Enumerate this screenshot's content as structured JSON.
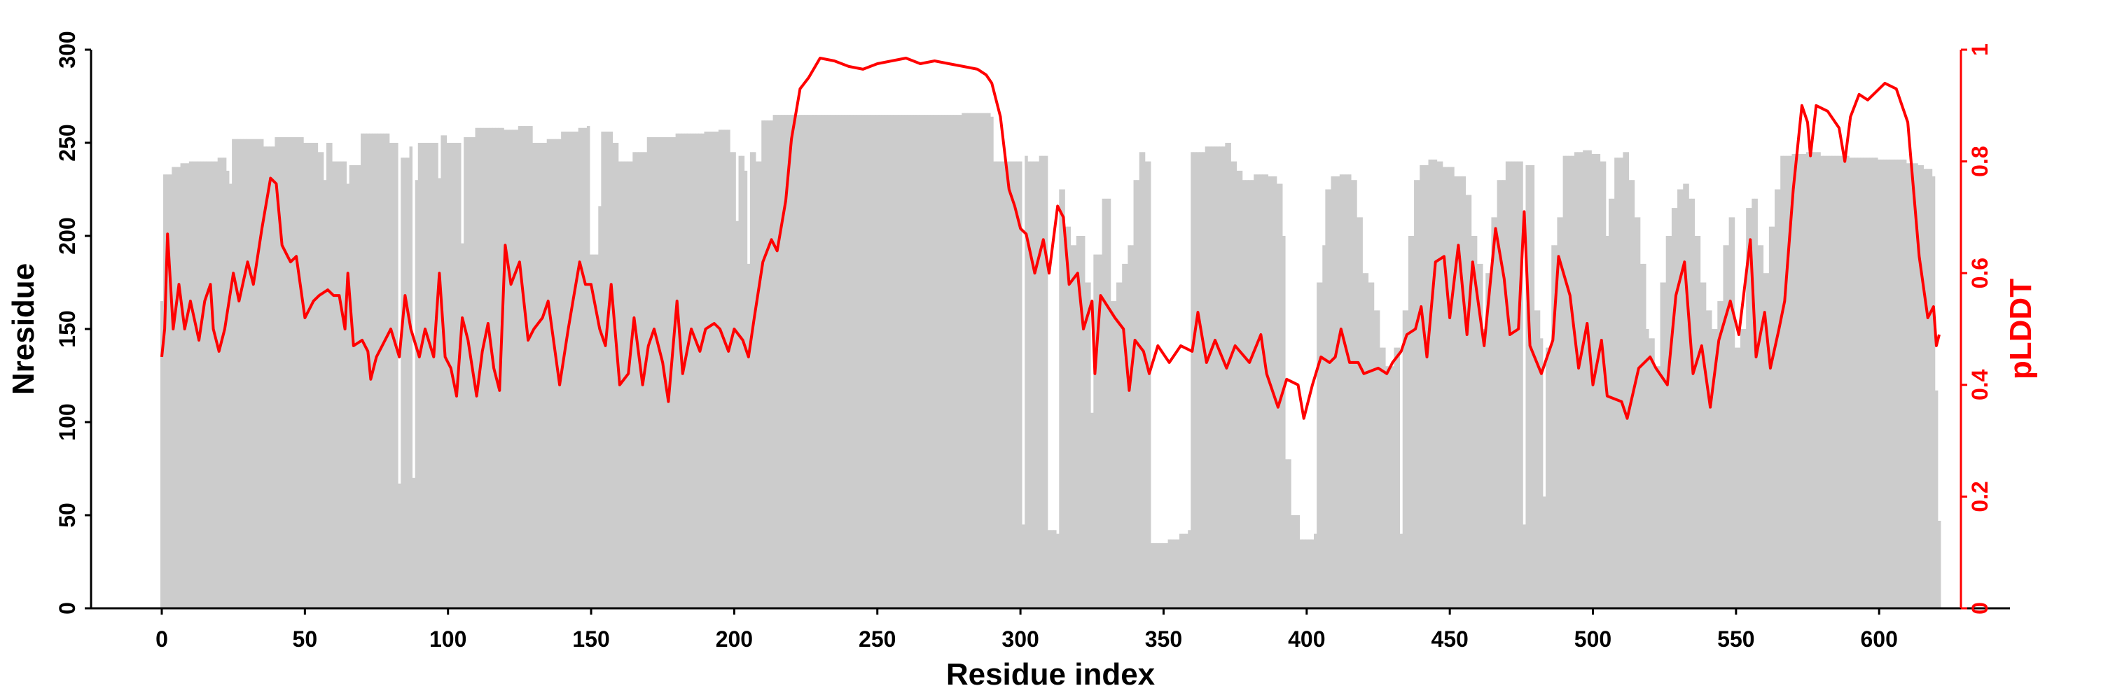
{
  "chart_data": {
    "type": "bar+line",
    "xlabel": "Residue index",
    "ylabel": "Nresidue",
    "y2label": "pLDDT",
    "xlim": [
      -25,
      640
    ],
    "ylim": [
      0,
      300
    ],
    "y2lim": [
      0,
      1
    ],
    "xticks": [
      "0",
      "50",
      "100",
      "150",
      "200",
      "250",
      "300",
      "350",
      "400",
      "450",
      "500",
      "550",
      "600"
    ],
    "yticks": [
      "0",
      "50",
      "100",
      "150",
      "200",
      "250",
      "300"
    ],
    "y2ticks": [
      "0",
      "0.2",
      "0.4",
      "0.6",
      "0.8",
      "1"
    ],
    "colors": {
      "bars": "#cccccc",
      "line": "#ff0000",
      "axis": "#000000",
      "axis2": "#ff0000"
    },
    "nresidue_steps": [
      [
        0,
        165
      ],
      [
        1,
        233
      ],
      [
        4,
        237
      ],
      [
        7,
        239
      ],
      [
        10,
        240
      ],
      [
        20,
        242
      ],
      [
        23,
        235
      ],
      [
        24,
        228
      ],
      [
        25,
        252
      ],
      [
        36,
        248
      ],
      [
        40,
        253
      ],
      [
        50,
        250
      ],
      [
        55,
        245
      ],
      [
        57,
        230
      ],
      [
        58,
        250
      ],
      [
        60,
        240
      ],
      [
        65,
        228
      ],
      [
        66,
        238
      ],
      [
        70,
        255
      ],
      [
        80,
        250
      ],
      [
        83,
        67
      ],
      [
        84,
        242
      ],
      [
        87,
        248
      ],
      [
        88,
        70
      ],
      [
        89,
        230
      ],
      [
        90,
        250
      ],
      [
        97,
        231
      ],
      [
        98,
        254
      ],
      [
        100,
        250
      ],
      [
        105,
        196
      ],
      [
        106,
        253
      ],
      [
        110,
        258
      ],
      [
        120,
        257
      ],
      [
        125,
        259
      ],
      [
        130,
        250
      ],
      [
        135,
        252
      ],
      [
        140,
        256
      ],
      [
        146,
        258
      ],
      [
        149,
        259
      ],
      [
        150,
        190
      ],
      [
        153,
        216
      ],
      [
        154,
        256
      ],
      [
        158,
        250
      ],
      [
        160,
        240
      ],
      [
        165,
        245
      ],
      [
        170,
        253
      ],
      [
        180,
        255
      ],
      [
        190,
        256
      ],
      [
        195,
        257
      ],
      [
        199,
        245
      ],
      [
        201,
        208
      ],
      [
        202,
        243
      ],
      [
        204,
        235
      ],
      [
        205,
        185
      ],
      [
        206,
        245
      ],
      [
        208,
        240
      ],
      [
        210,
        262
      ],
      [
        214,
        265
      ],
      [
        220,
        265
      ],
      [
        250,
        265
      ],
      [
        270,
        265
      ],
      [
        280,
        266
      ],
      [
        290,
        264
      ],
      [
        291,
        240
      ],
      [
        301,
        45
      ],
      [
        302,
        243
      ],
      [
        303,
        240
      ],
      [
        307,
        243
      ],
      [
        310,
        42
      ],
      [
        313,
        40
      ],
      [
        314,
        225
      ],
      [
        316,
        205
      ],
      [
        318,
        195
      ],
      [
        320,
        200
      ],
      [
        323,
        175
      ],
      [
        325,
        105
      ],
      [
        326,
        190
      ],
      [
        329,
        220
      ],
      [
        332,
        165
      ],
      [
        334,
        175
      ],
      [
        336,
        185
      ],
      [
        338,
        195
      ],
      [
        340,
        230
      ],
      [
        342,
        245
      ],
      [
        344,
        240
      ],
      [
        346,
        35
      ],
      [
        352,
        37
      ],
      [
        356,
        40
      ],
      [
        359,
        42
      ],
      [
        360,
        245
      ],
      [
        365,
        248
      ],
      [
        372,
        250
      ],
      [
        374,
        240
      ],
      [
        376,
        235
      ],
      [
        378,
        230
      ],
      [
        382,
        233
      ],
      [
        387,
        232
      ],
      [
        390,
        228
      ],
      [
        392,
        200
      ],
      [
        393,
        80
      ],
      [
        395,
        50
      ],
      [
        398,
        37
      ],
      [
        403,
        40
      ],
      [
        404,
        175
      ],
      [
        406,
        195
      ],
      [
        407,
        225
      ],
      [
        409,
        232
      ],
      [
        412,
        233
      ],
      [
        416,
        230
      ],
      [
        418,
        210
      ],
      [
        420,
        180
      ],
      [
        422,
        175
      ],
      [
        424,
        160
      ],
      [
        426,
        140
      ],
      [
        428,
        130
      ],
      [
        431,
        140
      ],
      [
        433,
        40
      ],
      [
        434,
        160
      ],
      [
        436,
        200
      ],
      [
        438,
        230
      ],
      [
        440,
        238
      ],
      [
        443,
        241
      ],
      [
        446,
        240
      ],
      [
        448,
        237
      ],
      [
        452,
        232
      ],
      [
        456,
        222
      ],
      [
        458,
        200
      ],
      [
        460,
        185
      ],
      [
        462,
        150
      ],
      [
        463,
        180
      ],
      [
        465,
        210
      ],
      [
        467,
        230
      ],
      [
        470,
        240
      ],
      [
        476,
        45
      ],
      [
        477,
        238
      ],
      [
        480,
        160
      ],
      [
        482,
        145
      ],
      [
        483,
        60
      ],
      [
        484,
        140
      ],
      [
        486,
        195
      ],
      [
        488,
        210
      ],
      [
        490,
        243
      ],
      [
        494,
        245
      ],
      [
        497,
        246
      ],
      [
        500,
        244
      ],
      [
        503,
        240
      ],
      [
        505,
        200
      ],
      [
        506,
        220
      ],
      [
        508,
        242
      ],
      [
        511,
        245
      ],
      [
        513,
        230
      ],
      [
        515,
        210
      ],
      [
        517,
        185
      ],
      [
        519,
        150
      ],
      [
        520,
        145
      ],
      [
        522,
        130
      ],
      [
        524,
        175
      ],
      [
        526,
        200
      ],
      [
        528,
        215
      ],
      [
        530,
        225
      ],
      [
        532,
        228
      ],
      [
        534,
        220
      ],
      [
        536,
        200
      ],
      [
        538,
        175
      ],
      [
        540,
        160
      ],
      [
        542,
        150
      ],
      [
        544,
        165
      ],
      [
        546,
        195
      ],
      [
        548,
        210
      ],
      [
        550,
        140
      ],
      [
        552,
        150
      ],
      [
        554,
        215
      ],
      [
        556,
        220
      ],
      [
        558,
        195
      ],
      [
        560,
        180
      ],
      [
        562,
        205
      ],
      [
        564,
        225
      ],
      [
        566,
        243
      ],
      [
        570,
        244
      ],
      [
        575,
        245
      ],
      [
        580,
        243
      ],
      [
        590,
        242
      ],
      [
        600,
        241
      ],
      [
        610,
        239
      ],
      [
        614,
        238
      ],
      [
        616,
        236
      ],
      [
        619,
        232
      ],
      [
        620,
        117
      ],
      [
        621,
        47
      ]
    ],
    "plddt_points": [
      [
        0,
        0.45
      ],
      [
        1,
        0.5
      ],
      [
        2,
        0.67
      ],
      [
        4,
        0.5
      ],
      [
        6,
        0.58
      ],
      [
        8,
        0.5
      ],
      [
        10,
        0.55
      ],
      [
        13,
        0.48
      ],
      [
        15,
        0.55
      ],
      [
        17,
        0.58
      ],
      [
        18,
        0.5
      ],
      [
        20,
        0.46
      ],
      [
        22,
        0.5
      ],
      [
        25,
        0.6
      ],
      [
        27,
        0.55
      ],
      [
        30,
        0.62
      ],
      [
        32,
        0.58
      ],
      [
        35,
        0.68
      ],
      [
        38,
        0.77
      ],
      [
        40,
        0.76
      ],
      [
        42,
        0.65
      ],
      [
        44,
        0.63
      ],
      [
        45,
        0.62
      ],
      [
        47,
        0.63
      ],
      [
        50,
        0.52
      ],
      [
        53,
        0.55
      ],
      [
        55,
        0.56
      ],
      [
        58,
        0.57
      ],
      [
        60,
        0.56
      ],
      [
        62,
        0.56
      ],
      [
        64,
        0.5
      ],
      [
        65,
        0.6
      ],
      [
        67,
        0.47
      ],
      [
        70,
        0.48
      ],
      [
        72,
        0.46
      ],
      [
        73,
        0.41
      ],
      [
        75,
        0.45
      ],
      [
        78,
        0.48
      ],
      [
        80,
        0.5
      ],
      [
        83,
        0.45
      ],
      [
        85,
        0.56
      ],
      [
        87,
        0.5
      ],
      [
        90,
        0.45
      ],
      [
        92,
        0.5
      ],
      [
        95,
        0.45
      ],
      [
        97,
        0.6
      ],
      [
        99,
        0.45
      ],
      [
        101,
        0.43
      ],
      [
        103,
        0.38
      ],
      [
        105,
        0.52
      ],
      [
        107,
        0.48
      ],
      [
        110,
        0.38
      ],
      [
        112,
        0.46
      ],
      [
        114,
        0.51
      ],
      [
        116,
        0.43
      ],
      [
        118,
        0.39
      ],
      [
        120,
        0.65
      ],
      [
        122,
        0.58
      ],
      [
        125,
        0.62
      ],
      [
        128,
        0.48
      ],
      [
        130,
        0.5
      ],
      [
        133,
        0.52
      ],
      [
        135,
        0.55
      ],
      [
        139,
        0.4
      ],
      [
        142,
        0.5
      ],
      [
        144,
        0.56
      ],
      [
        146,
        0.62
      ],
      [
        148,
        0.58
      ],
      [
        150,
        0.58
      ],
      [
        153,
        0.5
      ],
      [
        155,
        0.47
      ],
      [
        157,
        0.58
      ],
      [
        160,
        0.4
      ],
      [
        163,
        0.42
      ],
      [
        165,
        0.52
      ],
      [
        168,
        0.4
      ],
      [
        170,
        0.47
      ],
      [
        172,
        0.5
      ],
      [
        175,
        0.44
      ],
      [
        177,
        0.37
      ],
      [
        180,
        0.55
      ],
      [
        182,
        0.42
      ],
      [
        185,
        0.5
      ],
      [
        188,
        0.46
      ],
      [
        190,
        0.5
      ],
      [
        193,
        0.51
      ],
      [
        195,
        0.5
      ],
      [
        198,
        0.46
      ],
      [
        200,
        0.5
      ],
      [
        203,
        0.48
      ],
      [
        205,
        0.45
      ],
      [
        207,
        0.52
      ],
      [
        210,
        0.62
      ],
      [
        213,
        0.66
      ],
      [
        215,
        0.64
      ],
      [
        218,
        0.73
      ],
      [
        220,
        0.84
      ],
      [
        223,
        0.93
      ],
      [
        226,
        0.95
      ],
      [
        230,
        0.985
      ],
      [
        235,
        0.98
      ],
      [
        240,
        0.97
      ],
      [
        245,
        0.965
      ],
      [
        250,
        0.975
      ],
      [
        255,
        0.98
      ],
      [
        260,
        0.985
      ],
      [
        265,
        0.975
      ],
      [
        270,
        0.98
      ],
      [
        275,
        0.975
      ],
      [
        280,
        0.97
      ],
      [
        285,
        0.965
      ],
      [
        288,
        0.955
      ],
      [
        290,
        0.94
      ],
      [
        293,
        0.88
      ],
      [
        296,
        0.75
      ],
      [
        298,
        0.72
      ],
      [
        300,
        0.68
      ],
      [
        302,
        0.67
      ],
      [
        305,
        0.6
      ],
      [
        308,
        0.66
      ],
      [
        310,
        0.6
      ],
      [
        313,
        0.72
      ],
      [
        315,
        0.7
      ],
      [
        317,
        0.58
      ],
      [
        320,
        0.6
      ],
      [
        322,
        0.5
      ],
      [
        325,
        0.55
      ],
      [
        326,
        0.42
      ],
      [
        328,
        0.56
      ],
      [
        333,
        0.52
      ],
      [
        336,
        0.5
      ],
      [
        338,
        0.39
      ],
      [
        340,
        0.48
      ],
      [
        343,
        0.46
      ],
      [
        345,
        0.42
      ],
      [
        348,
        0.47
      ],
      [
        352,
        0.44
      ],
      [
        356,
        0.47
      ],
      [
        360,
        0.46
      ],
      [
        362,
        0.53
      ],
      [
        365,
        0.44
      ],
      [
        368,
        0.48
      ],
      [
        372,
        0.43
      ],
      [
        375,
        0.47
      ],
      [
        380,
        0.44
      ],
      [
        384,
        0.49
      ],
      [
        386,
        0.42
      ],
      [
        390,
        0.36
      ],
      [
        393,
        0.41
      ],
      [
        397,
        0.4
      ],
      [
        399,
        0.34
      ],
      [
        402,
        0.4
      ],
      [
        405,
        0.45
      ],
      [
        408,
        0.44
      ],
      [
        410,
        0.45
      ],
      [
        412,
        0.5
      ],
      [
        415,
        0.44
      ],
      [
        418,
        0.44
      ],
      [
        420,
        0.42
      ],
      [
        425,
        0.43
      ],
      [
        428,
        0.42
      ],
      [
        430,
        0.44
      ],
      [
        433,
        0.46
      ],
      [
        435,
        0.49
      ],
      [
        438,
        0.5
      ],
      [
        440,
        0.54
      ],
      [
        442,
        0.45
      ],
      [
        445,
        0.62
      ],
      [
        448,
        0.63
      ],
      [
        450,
        0.52
      ],
      [
        453,
        0.65
      ],
      [
        456,
        0.49
      ],
      [
        458,
        0.62
      ],
      [
        462,
        0.47
      ],
      [
        466,
        0.68
      ],
      [
        469,
        0.59
      ],
      [
        471,
        0.49
      ],
      [
        474,
        0.5
      ],
      [
        476,
        0.71
      ],
      [
        478,
        0.47
      ],
      [
        482,
        0.42
      ],
      [
        486,
        0.48
      ],
      [
        488,
        0.63
      ],
      [
        492,
        0.56
      ],
      [
        495,
        0.43
      ],
      [
        498,
        0.51
      ],
      [
        500,
        0.4
      ],
      [
        503,
        0.48
      ],
      [
        505,
        0.38
      ],
      [
        510,
        0.37
      ],
      [
        512,
        0.34
      ],
      [
        516,
        0.43
      ],
      [
        520,
        0.45
      ],
      [
        522,
        0.43
      ],
      [
        526,
        0.4
      ],
      [
        529,
        0.56
      ],
      [
        532,
        0.62
      ],
      [
        535,
        0.42
      ],
      [
        538,
        0.47
      ],
      [
        541,
        0.36
      ],
      [
        544,
        0.48
      ],
      [
        548,
        0.55
      ],
      [
        551,
        0.49
      ],
      [
        555,
        0.66
      ],
      [
        557,
        0.45
      ],
      [
        560,
        0.53
      ],
      [
        562,
        0.43
      ],
      [
        565,
        0.5
      ],
      [
        567,
        0.55
      ],
      [
        570,
        0.75
      ],
      [
        573,
        0.9
      ],
      [
        575,
        0.87
      ],
      [
        576,
        0.81
      ],
      [
        578,
        0.9
      ],
      [
        582,
        0.89
      ],
      [
        586,
        0.86
      ],
      [
        588,
        0.8
      ],
      [
        590,
        0.88
      ],
      [
        593,
        0.92
      ],
      [
        596,
        0.91
      ],
      [
        600,
        0.93
      ],
      [
        602,
        0.94
      ],
      [
        606,
        0.93
      ],
      [
        608,
        0.9
      ],
      [
        610,
        0.87
      ],
      [
        614,
        0.63
      ],
      [
        617,
        0.52
      ],
      [
        619,
        0.54
      ],
      [
        620,
        0.47
      ],
      [
        621,
        0.49
      ]
    ]
  }
}
